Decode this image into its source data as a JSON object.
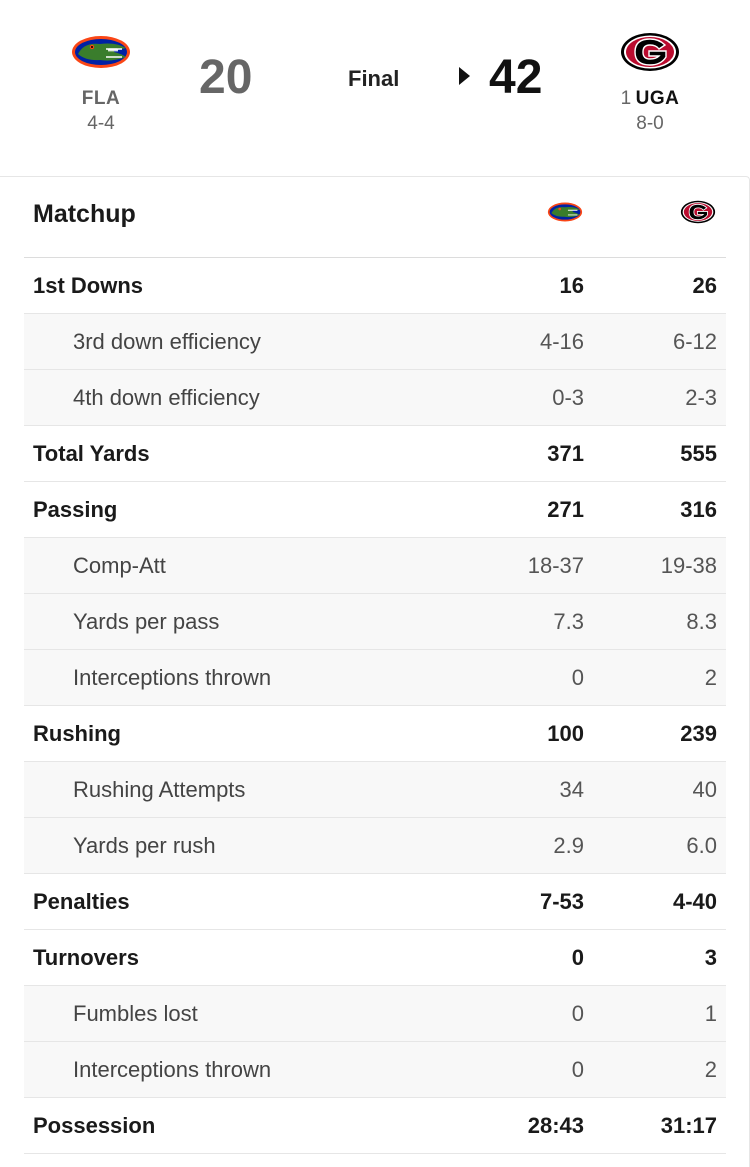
{
  "game": {
    "status": "Final",
    "away": {
      "abbr": "FLA",
      "record": "4-4",
      "score": "20",
      "logo_icon": "florida-gator-logo-icon",
      "colors": {
        "orange": "#FA4616",
        "blue": "#0021A5",
        "green": "#3a7d2c"
      }
    },
    "home": {
      "rank": "1",
      "abbr": "UGA",
      "record": "8-0",
      "score": "42",
      "logo_icon": "georgia-g-logo-icon",
      "colors": {
        "red": "#BA0C2F",
        "black": "#000000"
      }
    },
    "winner_indicator_icon": "triangle-right-icon"
  },
  "matchup": {
    "title": "Matchup",
    "rows": [
      {
        "label": "1st Downs",
        "away": "16",
        "home": "26",
        "sub": false
      },
      {
        "label": "3rd down efficiency",
        "away": "4-16",
        "home": "6-12",
        "sub": true
      },
      {
        "label": "4th down efficiency",
        "away": "0-3",
        "home": "2-3",
        "sub": true
      },
      {
        "label": "Total Yards",
        "away": "371",
        "home": "555",
        "sub": false
      },
      {
        "label": "Passing",
        "away": "271",
        "home": "316",
        "sub": false
      },
      {
        "label": "Comp-Att",
        "away": "18-37",
        "home": "19-38",
        "sub": true
      },
      {
        "label": "Yards per pass",
        "away": "7.3",
        "home": "8.3",
        "sub": true
      },
      {
        "label": "Interceptions thrown",
        "away": "0",
        "home": "2",
        "sub": true
      },
      {
        "label": "Rushing",
        "away": "100",
        "home": "239",
        "sub": false
      },
      {
        "label": "Rushing Attempts",
        "away": "34",
        "home": "40",
        "sub": true
      },
      {
        "label": "Yards per rush",
        "away": "2.9",
        "home": "6.0",
        "sub": true
      },
      {
        "label": "Penalties",
        "away": "7-53",
        "home": "4-40",
        "sub": false
      },
      {
        "label": "Turnovers",
        "away": "0",
        "home": "3",
        "sub": false
      },
      {
        "label": "Fumbles lost",
        "away": "0",
        "home": "1",
        "sub": true
      },
      {
        "label": "Interceptions thrown",
        "away": "0",
        "home": "2",
        "sub": true
      },
      {
        "label": "Possession",
        "away": "28:43",
        "home": "31:17",
        "sub": false
      }
    ]
  }
}
